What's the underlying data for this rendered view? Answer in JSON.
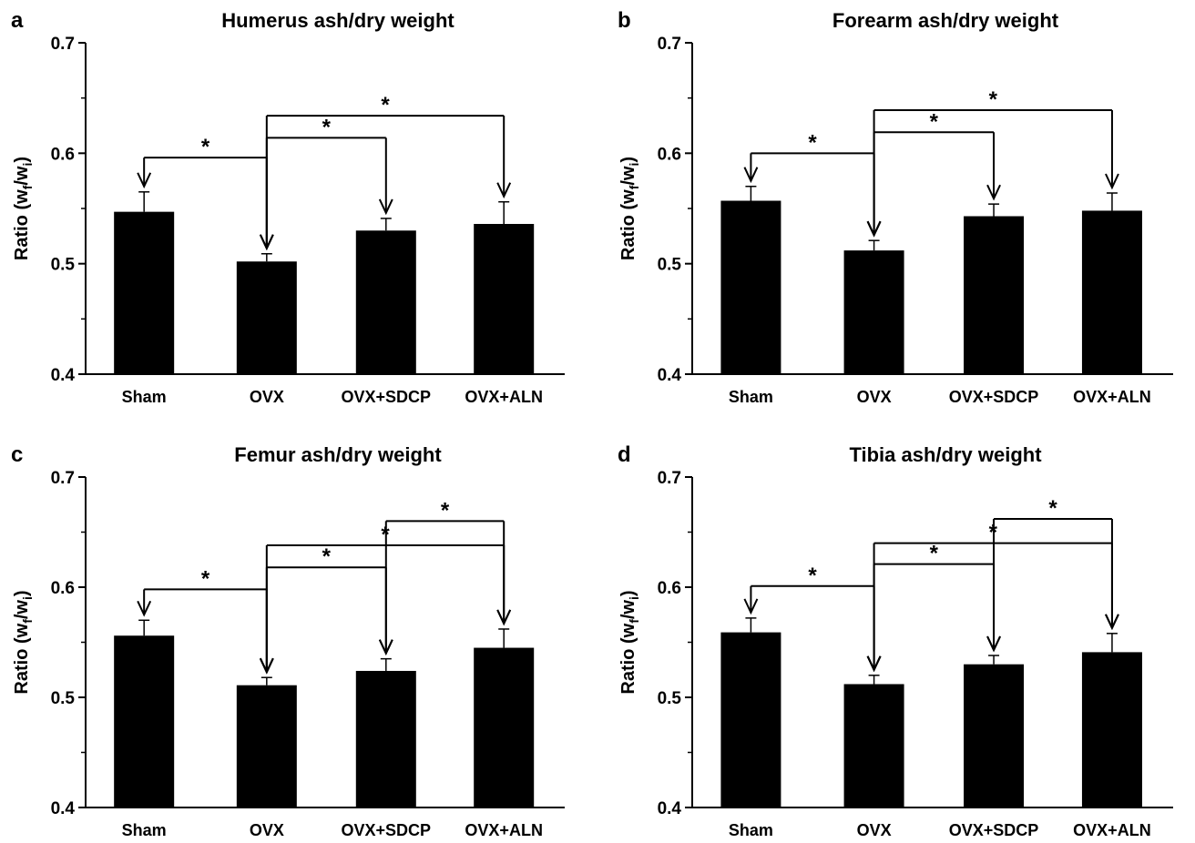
{
  "chart_data": [
    {
      "panel": "a",
      "type": "bar",
      "title": "Humerus ash/dry weight",
      "ylabel": "Ratio (w",
      "ylabel_sub1": "f",
      "ylabel_mid": "/w",
      "ylabel_sub2": "i",
      "ylabel_end": ")",
      "categories": [
        "Sham",
        "OVX",
        "OVX+SDCP",
        "OVX+ALN"
      ],
      "values": [
        0.547,
        0.502,
        0.53,
        0.536
      ],
      "errors": [
        0.018,
        0.007,
        0.011,
        0.02
      ],
      "ylim": [
        0.4,
        0.7
      ],
      "yticks": [
        "0.4",
        "0.5",
        "0.6",
        "0.7"
      ],
      "significance": [
        {
          "from": 0,
          "to": 1,
          "level": 0.596,
          "label": "*"
        },
        {
          "from": 1,
          "to": 2,
          "level": 0.614,
          "label": "*"
        },
        {
          "from": 1,
          "to": 3,
          "level": 0.634,
          "label": "*"
        }
      ]
    },
    {
      "panel": "b",
      "type": "bar",
      "title": "Forearm ash/dry weight",
      "ylabel": "Ratio (w",
      "ylabel_sub1": "f",
      "ylabel_mid": "/w",
      "ylabel_sub2": "i",
      "ylabel_end": ")",
      "categories": [
        "Sham",
        "OVX",
        "OVX+SDCP",
        "OVX+ALN"
      ],
      "values": [
        0.557,
        0.512,
        0.543,
        0.548
      ],
      "errors": [
        0.013,
        0.009,
        0.011,
        0.016
      ],
      "ylim": [
        0.4,
        0.7
      ],
      "yticks": [
        "0.4",
        "0.5",
        "0.6",
        "0.7"
      ],
      "significance": [
        {
          "from": 0,
          "to": 1,
          "level": 0.6,
          "label": "*"
        },
        {
          "from": 1,
          "to": 2,
          "level": 0.619,
          "label": "*"
        },
        {
          "from": 1,
          "to": 3,
          "level": 0.639,
          "label": "*"
        }
      ]
    },
    {
      "panel": "c",
      "type": "bar",
      "title": "Femur ash/dry weight",
      "ylabel": "Ratio (w",
      "ylabel_sub1": "f",
      "ylabel_mid": "/w",
      "ylabel_sub2": "i",
      "ylabel_end": ")",
      "categories": [
        "Sham",
        "OVX",
        "OVX+SDCP",
        "OVX+ALN"
      ],
      "values": [
        0.556,
        0.511,
        0.524,
        0.545
      ],
      "errors": [
        0.014,
        0.007,
        0.011,
        0.017
      ],
      "ylim": [
        0.4,
        0.7
      ],
      "yticks": [
        "0.4",
        "0.5",
        "0.6",
        "0.7"
      ],
      "significance": [
        {
          "from": 0,
          "to": 1,
          "level": 0.598,
          "label": "*"
        },
        {
          "from": 1,
          "to": 2,
          "level": 0.618,
          "label": "*"
        },
        {
          "from": 1,
          "to": 3,
          "level": 0.638,
          "label": "*"
        },
        {
          "from": 2,
          "to": 3,
          "level": 0.66,
          "label": "*"
        }
      ]
    },
    {
      "panel": "d",
      "type": "bar",
      "title": "Tibia ash/dry weight",
      "ylabel": "Ratio (w",
      "ylabel_sub1": "f",
      "ylabel_mid": "/w",
      "ylabel_sub2": "i",
      "ylabel_end": ")",
      "categories": [
        "Sham",
        "OVX",
        "OVX+SDCP",
        "OVX+ALN"
      ],
      "values": [
        0.559,
        0.512,
        0.53,
        0.541
      ],
      "errors": [
        0.013,
        0.008,
        0.008,
        0.017
      ],
      "ylim": [
        0.4,
        0.7
      ],
      "yticks": [
        "0.4",
        "0.5",
        "0.6",
        "0.7"
      ],
      "significance": [
        {
          "from": 0,
          "to": 1,
          "level": 0.601,
          "label": "*"
        },
        {
          "from": 1,
          "to": 2,
          "level": 0.621,
          "label": "*"
        },
        {
          "from": 1,
          "to": 3,
          "level": 0.64,
          "label": "*"
        },
        {
          "from": 2,
          "to": 3,
          "level": 0.662,
          "label": "*"
        }
      ]
    }
  ],
  "colors": {
    "bar": "#000000",
    "axis": "#000000",
    "background": "#ffffff"
  }
}
